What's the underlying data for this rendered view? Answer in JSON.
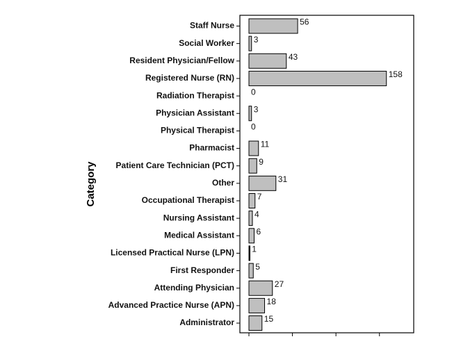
{
  "chart_data": {
    "type": "bar",
    "orientation": "horizontal",
    "title": "",
    "xlabel": "",
    "ylabel": "Category",
    "categories": [
      "Staff Nurse",
      "Social Worker",
      "Resident Physician/Fellow",
      "Registered Nurse (RN)",
      "Radiation Therapist",
      "Physician Assistant",
      "Physical Therapist",
      "Pharmacist",
      "Patient Care Technician (PCT)",
      "Other",
      "Occupational Therapist",
      "Nursing Assistant",
      "Medical Assistant",
      "Licensed Practical Nurse (LPN)",
      "First Responder",
      "Attending Physician",
      "Advanced Practice Nurse (APN)",
      "Administrator"
    ],
    "values": [
      56,
      3,
      43,
      158,
      0,
      3,
      0,
      11,
      9,
      31,
      7,
      4,
      6,
      1,
      5,
      27,
      18,
      15
    ],
    "xlim": [
      0,
      190
    ],
    "grid": false,
    "legend": "none",
    "colors": {
      "bar_fill": "#bfbfbf",
      "bar_stroke": "#000000",
      "frame": "#000000"
    }
  }
}
